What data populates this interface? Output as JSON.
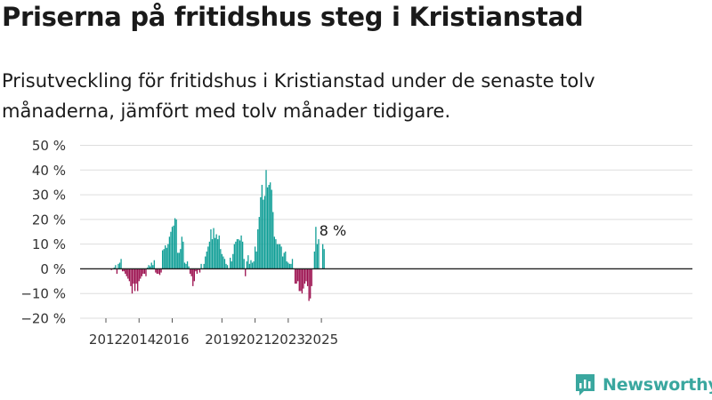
{
  "title": "Priserna på fritidshus steg i Kristianstad",
  "subtitle": "Prisutveckling för fritidshus i Kristianstad under de senaste tolv månaderna, jämfört med tolv månader tidigare.",
  "brand": {
    "name": "Newsworthy"
  },
  "colors": {
    "positive": "#0f9e96",
    "negative": "#9b0f4e",
    "grid": "#dddddd",
    "axis": "#222222"
  },
  "chart_data": {
    "type": "bar",
    "x_unit": "month",
    "ylim": [
      -20,
      50
    ],
    "yticks": [
      -20,
      -10,
      0,
      10,
      20,
      30,
      40,
      50
    ],
    "ytick_labels": [
      "−20 %",
      "−10 %",
      "0 %",
      "10 %",
      "20 %",
      "30 %",
      "40 %",
      "50 %"
    ],
    "xticks": [
      {
        "label": "2012",
        "date": "2012-01"
      },
      {
        "label": "2014",
        "date": "2014-01"
      },
      {
        "label": "2016",
        "date": "2016-01"
      },
      {
        "label": "2019",
        "date": "2019-01"
      },
      {
        "label": "2021",
        "date": "2021-01"
      },
      {
        "label": "2023",
        "date": "2023-01"
      },
      {
        "label": "2025",
        "date": "2025-01"
      }
    ],
    "grid": true,
    "annotation": {
      "text": "8 %",
      "date": "2025-04"
    },
    "series": [
      {
        "values": [
          {
            "date": "2012-05",
            "value": -0.5
          },
          {
            "date": "2012-07",
            "value": 0.5
          },
          {
            "date": "2012-08",
            "value": 1.5
          },
          {
            "date": "2012-09",
            "value": -2
          },
          {
            "date": "2012-10",
            "value": 2
          },
          {
            "date": "2012-11",
            "value": 2.5
          },
          {
            "date": "2012-12",
            "value": 4
          },
          {
            "date": "2013-01",
            "value": -1
          },
          {
            "date": "2013-02",
            "value": -1
          },
          {
            "date": "2013-03",
            "value": -2
          },
          {
            "date": "2013-04",
            "value": -3
          },
          {
            "date": "2013-05",
            "value": -4
          },
          {
            "date": "2013-06",
            "value": -5
          },
          {
            "date": "2013-07",
            "value": -7
          },
          {
            "date": "2013-08",
            "value": -10
          },
          {
            "date": "2013-09",
            "value": -6
          },
          {
            "date": "2013-10",
            "value": -9
          },
          {
            "date": "2013-11",
            "value": -6
          },
          {
            "date": "2013-12",
            "value": -9
          },
          {
            "date": "2014-01",
            "value": -5
          },
          {
            "date": "2014-02",
            "value": -4
          },
          {
            "date": "2014-03",
            "value": -3
          },
          {
            "date": "2014-04",
            "value": -2
          },
          {
            "date": "2014-05",
            "value": -2
          },
          {
            "date": "2014-06",
            "value": -3
          },
          {
            "date": "2014-07",
            "value": 0.5
          },
          {
            "date": "2014-08",
            "value": 1.5
          },
          {
            "date": "2014-09",
            "value": 1
          },
          {
            "date": "2014-10",
            "value": 2.5
          },
          {
            "date": "2014-11",
            "value": 1.5
          },
          {
            "date": "2014-12",
            "value": 3.5
          },
          {
            "date": "2015-01",
            "value": -1.5
          },
          {
            "date": "2015-02",
            "value": -2
          },
          {
            "date": "2015-03",
            "value": -2
          },
          {
            "date": "2015-04",
            "value": -2.5
          },
          {
            "date": "2015-05",
            "value": -1.5
          },
          {
            "date": "2015-06",
            "value": 7.5
          },
          {
            "date": "2015-07",
            "value": 8
          },
          {
            "date": "2015-08",
            "value": 9.5
          },
          {
            "date": "2015-09",
            "value": 8.5
          },
          {
            "date": "2015-10",
            "value": 10
          },
          {
            "date": "2015-11",
            "value": 13
          },
          {
            "date": "2015-12",
            "value": 15
          },
          {
            "date": "2016-01",
            "value": 17
          },
          {
            "date": "2016-02",
            "value": 17.5
          },
          {
            "date": "2016-03",
            "value": 20.5
          },
          {
            "date": "2016-04",
            "value": 20
          },
          {
            "date": "2016-05",
            "value": 6.5
          },
          {
            "date": "2016-06",
            "value": 6.5
          },
          {
            "date": "2016-07",
            "value": 8
          },
          {
            "date": "2016-08",
            "value": 13
          },
          {
            "date": "2016-09",
            "value": 11
          },
          {
            "date": "2016-10",
            "value": 2.5
          },
          {
            "date": "2016-11",
            "value": 2
          },
          {
            "date": "2016-12",
            "value": 3
          },
          {
            "date": "2017-01",
            "value": 1
          },
          {
            "date": "2017-02",
            "value": -2
          },
          {
            "date": "2017-03",
            "value": -3
          },
          {
            "date": "2017-04",
            "value": -7
          },
          {
            "date": "2017-05",
            "value": -5
          },
          {
            "date": "2017-06",
            "value": -1
          },
          {
            "date": "2017-07",
            "value": -2
          },
          {
            "date": "2017-08",
            "value": -0.5
          },
          {
            "date": "2017-09",
            "value": -1.5
          },
          {
            "date": "2017-10",
            "value": 2
          },
          {
            "date": "2017-12",
            "value": 2
          },
          {
            "date": "2018-01",
            "value": 5
          },
          {
            "date": "2018-02",
            "value": 7
          },
          {
            "date": "2018-03",
            "value": 9
          },
          {
            "date": "2018-04",
            "value": 11
          },
          {
            "date": "2018-05",
            "value": 16
          },
          {
            "date": "2018-06",
            "value": 12
          },
          {
            "date": "2018-07",
            "value": 16.5
          },
          {
            "date": "2018-08",
            "value": 12.5
          },
          {
            "date": "2018-09",
            "value": 14
          },
          {
            "date": "2018-10",
            "value": 12
          },
          {
            "date": "2018-11",
            "value": 13.5
          },
          {
            "date": "2018-12",
            "value": 8
          },
          {
            "date": "2019-01",
            "value": 6
          },
          {
            "date": "2019-02",
            "value": 5
          },
          {
            "date": "2019-03",
            "value": 4
          },
          {
            "date": "2019-04",
            "value": 2
          },
          {
            "date": "2019-05",
            "value": 1.5
          },
          {
            "date": "2019-07",
            "value": 4.5
          },
          {
            "date": "2019-08",
            "value": 3
          },
          {
            "date": "2019-09",
            "value": 6
          },
          {
            "date": "2019-10",
            "value": 10
          },
          {
            "date": "2019-11",
            "value": 11
          },
          {
            "date": "2019-12",
            "value": 12
          },
          {
            "date": "2020-01",
            "value": 12
          },
          {
            "date": "2020-02",
            "value": 11.5
          },
          {
            "date": "2020-03",
            "value": 13.5
          },
          {
            "date": "2020-04",
            "value": 11
          },
          {
            "date": "2020-05",
            "value": 4
          },
          {
            "date": "2020-06",
            "value": -3
          },
          {
            "date": "2020-07",
            "value": 3
          },
          {
            "date": "2020-08",
            "value": 5.5
          },
          {
            "date": "2020-09",
            "value": 2
          },
          {
            "date": "2020-10",
            "value": 3.5
          },
          {
            "date": "2020-11",
            "value": 2.5
          },
          {
            "date": "2020-12",
            "value": 3
          },
          {
            "date": "2021-01",
            "value": 9
          },
          {
            "date": "2021-02",
            "value": 7
          },
          {
            "date": "2021-03",
            "value": 16
          },
          {
            "date": "2021-04",
            "value": 21
          },
          {
            "date": "2021-05",
            "value": 29
          },
          {
            "date": "2021-06",
            "value": 34
          },
          {
            "date": "2021-07",
            "value": 28
          },
          {
            "date": "2021-08",
            "value": 29.5
          },
          {
            "date": "2021-09",
            "value": 40
          },
          {
            "date": "2021-10",
            "value": 33
          },
          {
            "date": "2021-11",
            "value": 34
          },
          {
            "date": "2021-12",
            "value": 35
          },
          {
            "date": "2022-01",
            "value": 32
          },
          {
            "date": "2022-02",
            "value": 23
          },
          {
            "date": "2022-03",
            "value": 13
          },
          {
            "date": "2022-04",
            "value": 12
          },
          {
            "date": "2022-05",
            "value": 10
          },
          {
            "date": "2022-06",
            "value": 10
          },
          {
            "date": "2022-07",
            "value": 10
          },
          {
            "date": "2022-08",
            "value": 9
          },
          {
            "date": "2022-09",
            "value": 5
          },
          {
            "date": "2022-10",
            "value": 6.5
          },
          {
            "date": "2022-11",
            "value": 7
          },
          {
            "date": "2022-12",
            "value": 3
          },
          {
            "date": "2023-01",
            "value": 2.5
          },
          {
            "date": "2023-02",
            "value": 2
          },
          {
            "date": "2023-03",
            "value": 2
          },
          {
            "date": "2023-04",
            "value": 4
          },
          {
            "date": "2023-06",
            "value": -6
          },
          {
            "date": "2023-07",
            "value": -6
          },
          {
            "date": "2023-08",
            "value": -5
          },
          {
            "date": "2023-09",
            "value": -9
          },
          {
            "date": "2023-10",
            "value": -9
          },
          {
            "date": "2023-11",
            "value": -10
          },
          {
            "date": "2023-12",
            "value": -8
          },
          {
            "date": "2024-01",
            "value": -6
          },
          {
            "date": "2024-02",
            "value": -5
          },
          {
            "date": "2024-03",
            "value": -7
          },
          {
            "date": "2024-04",
            "value": -13
          },
          {
            "date": "2024-05",
            "value": -12
          },
          {
            "date": "2024-06",
            "value": -7
          },
          {
            "date": "2024-08",
            "value": 7
          },
          {
            "date": "2024-09",
            "value": 17
          },
          {
            "date": "2024-10",
            "value": 10
          },
          {
            "date": "2024-11",
            "value": 12
          },
          {
            "date": "2025-02",
            "value": 10
          },
          {
            "date": "2025-03",
            "value": 8
          }
        ]
      }
    ]
  }
}
